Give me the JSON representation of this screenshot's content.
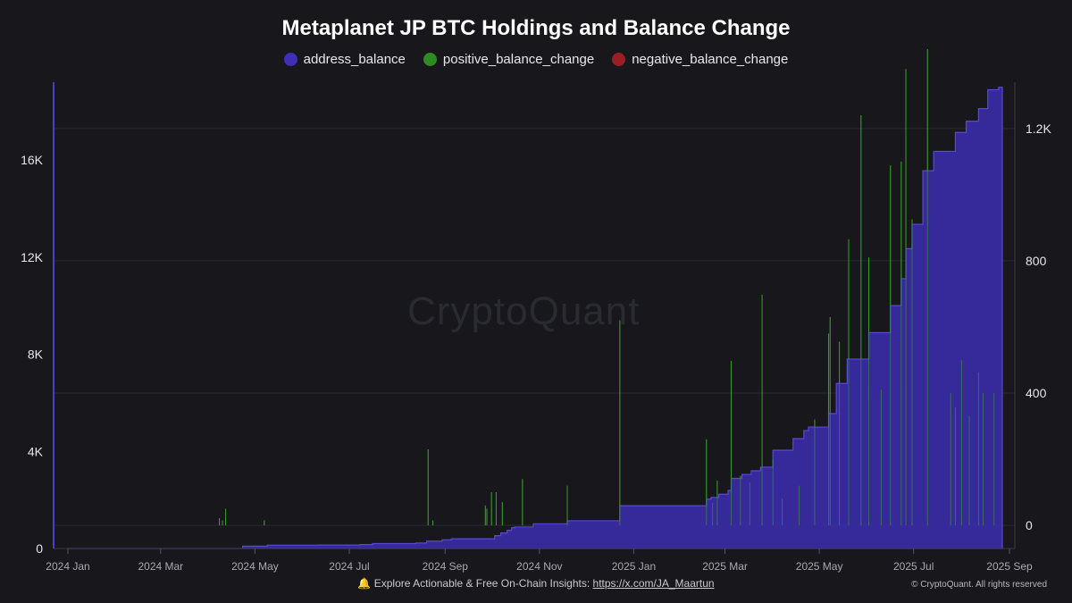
{
  "chart_data": {
    "type": "area",
    "title": "Metaplanet JP BTC Holdings and Balance Change",
    "legend": [
      {
        "name": "address_balance",
        "color": "#3e2fb8"
      },
      {
        "name": "positive_balance_change",
        "color": "#2e8b22"
      },
      {
        "name": "negative_balance_change",
        "color": "#9b1f22"
      }
    ],
    "legend_position": "top-center",
    "x_ticks": [
      "2024 Jan",
      "2024 Mar",
      "2024 May",
      "2024 Jul",
      "2024 Sep",
      "2024 Nov",
      "2025 Jan",
      "2025 Mar",
      "2025 May",
      "2025 Jul",
      "2025 Sep"
    ],
    "x_range": [
      "2024-01-01",
      "2025-09-01"
    ],
    "y_left": {
      "ticks": [
        "0",
        "4K",
        "8K",
        "12K",
        "16K"
      ],
      "range": [
        0,
        19200
      ]
    },
    "y_right": {
      "ticks": [
        "0",
        "400",
        "800",
        "1.2K"
      ],
      "range": [
        -70,
        1340
      ]
    },
    "grid": true,
    "series": [
      {
        "name": "address_balance",
        "axis": "left",
        "step": true,
        "points": [
          [
            "2024-01-01",
            0
          ],
          [
            "2024-04-23",
            97
          ],
          [
            "2024-05-09",
            141
          ],
          [
            "2024-06-11",
            142
          ],
          [
            "2024-07-08",
            162
          ],
          [
            "2024-07-16",
            203
          ],
          [
            "2024-08-13",
            225
          ],
          [
            "2024-08-20",
            303
          ],
          [
            "2024-08-30",
            361
          ],
          [
            "2024-09-05",
            399
          ],
          [
            "2024-10-01",
            398
          ],
          [
            "2024-10-03",
            530
          ],
          [
            "2024-10-07",
            640
          ],
          [
            "2024-10-11",
            749
          ],
          [
            "2024-10-14",
            855
          ],
          [
            "2024-10-15",
            861
          ],
          [
            "2024-10-16",
            885
          ],
          [
            "2024-10-28",
            1018
          ],
          [
            "2024-11-19",
            1142
          ],
          [
            "2024-12-23",
            1762
          ],
          [
            "2025-02-17",
            2031
          ],
          [
            "2025-02-20",
            2100
          ],
          [
            "2025-02-25",
            2235
          ],
          [
            "2025-03-03",
            2391
          ],
          [
            "2025-03-05",
            2888
          ],
          [
            "2025-03-12",
            3050
          ],
          [
            "2025-03-18",
            3200
          ],
          [
            "2025-03-24",
            3350
          ],
          [
            "2025-04-01",
            4046
          ],
          [
            "2025-04-14",
            4525
          ],
          [
            "2025-04-21",
            4855
          ],
          [
            "2025-04-24",
            5000
          ],
          [
            "2025-05-07",
            5555
          ],
          [
            "2025-05-12",
            6796
          ],
          [
            "2025-05-19",
            7800
          ],
          [
            "2025-06-02",
            8888
          ],
          [
            "2025-06-16",
            10000
          ],
          [
            "2025-06-23",
            11111
          ],
          [
            "2025-06-26",
            12345
          ],
          [
            "2025-06-30",
            13350
          ],
          [
            "2025-07-07",
            15555
          ],
          [
            "2025-07-14",
            16352
          ],
          [
            "2025-07-28",
            17132
          ],
          [
            "2025-08-04",
            17595
          ],
          [
            "2025-08-12",
            18113
          ],
          [
            "2025-08-18",
            18888
          ],
          [
            "2025-08-25",
            18991
          ]
        ]
      },
      {
        "name": "positive_balance_change",
        "axis": "right",
        "points": [
          [
            "2024-04-08",
            22
          ],
          [
            "2024-04-10",
            15
          ],
          [
            "2024-04-12",
            50
          ],
          [
            "2024-05-07",
            15
          ],
          [
            "2024-08-21",
            230
          ],
          [
            "2024-08-24",
            15
          ],
          [
            "2024-09-27",
            60
          ],
          [
            "2024-09-28",
            50
          ],
          [
            "2024-10-01",
            100
          ],
          [
            "2024-10-04",
            100
          ],
          [
            "2024-10-08",
            70
          ],
          [
            "2024-10-21",
            140
          ],
          [
            "2024-11-19",
            120
          ],
          [
            "2024-12-23",
            620
          ],
          [
            "2025-02-17",
            260
          ],
          [
            "2025-02-21",
            68
          ],
          [
            "2025-02-24",
            135
          ],
          [
            "2025-03-05",
            497
          ],
          [
            "2025-03-11",
            150
          ],
          [
            "2025-03-17",
            130
          ],
          [
            "2025-03-25",
            697
          ],
          [
            "2025-04-01",
            200
          ],
          [
            "2025-04-07",
            80
          ],
          [
            "2025-04-18",
            120
          ],
          [
            "2025-04-28",
            320
          ],
          [
            "2025-05-07",
            580
          ],
          [
            "2025-05-08",
            630
          ],
          [
            "2025-05-14",
            555
          ],
          [
            "2025-05-20",
            865
          ],
          [
            "2025-05-28",
            1240
          ],
          [
            "2025-06-02",
            810
          ],
          [
            "2025-06-10",
            410
          ],
          [
            "2025-06-16",
            1088
          ],
          [
            "2025-06-23",
            1100
          ],
          [
            "2025-06-26",
            1380
          ],
          [
            "2025-06-30",
            925
          ],
          [
            "2025-07-10",
            1440
          ],
          [
            "2025-07-25",
            400
          ],
          [
            "2025-07-28",
            356
          ],
          [
            "2025-08-01",
            500
          ],
          [
            "2025-08-06",
            330
          ],
          [
            "2025-08-12",
            463
          ],
          [
            "2025-08-15",
            400
          ],
          [
            "2025-08-22",
            400
          ]
        ]
      },
      {
        "name": "negative_balance_change",
        "axis": "right",
        "points": []
      }
    ]
  },
  "watermark": "CryptoQuant",
  "footer": {
    "bell_icon": "bell-icon",
    "text": "Explore Actionable & Free On-Chain Insights: ",
    "link": "https://x.com/JA_Maartun"
  },
  "copyright": "© CryptoQuant. All rights reserved"
}
